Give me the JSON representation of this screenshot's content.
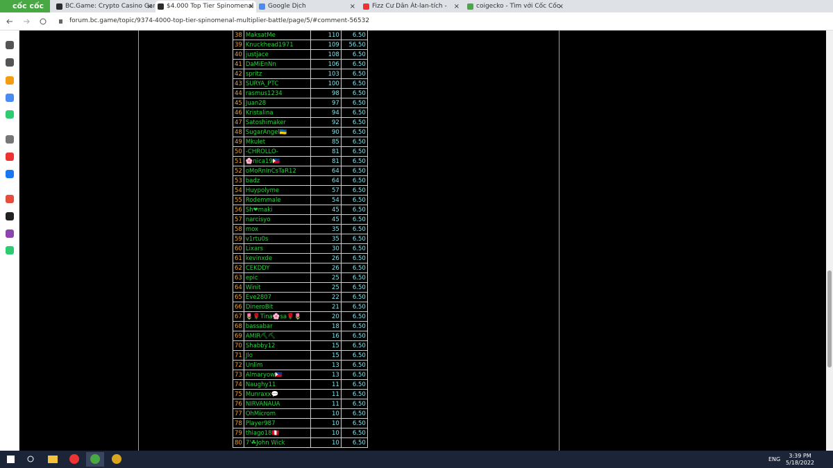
{
  "browser": {
    "logo": "cốc cốc",
    "tabs": [
      "BC.Game: Crypto Casino Gam",
      "$4.000 Top Tier Spinomenal",
      "Google Dịch",
      "Fizz Cư Dân Át-lan-tích -",
      "coigecko - Tìm với Cốc Cốc"
    ],
    "url": "forum.bc.game/topic/9374-4000-top-tier-spinomenal-multiplier-battle/page/5/#comment-56532"
  },
  "table": {
    "rows": [
      [
        "38",
        "MaksatMe",
        "110",
        "6.50"
      ],
      [
        "39",
        "Knuckhead1971",
        "109",
        "56.50"
      ],
      [
        "40",
        "justjace",
        "108",
        "6.50"
      ],
      [
        "41",
        "DaMiEnNn",
        "106",
        "6.50"
      ],
      [
        "42",
        "spritz",
        "103",
        "6.50"
      ],
      [
        "43",
        "SURYA_PTC",
        "100",
        "6.50"
      ],
      [
        "44",
        "rasmus1234",
        "98",
        "6.50"
      ],
      [
        "45",
        "Juan28",
        "97",
        "6.50"
      ],
      [
        "46",
        "Kristalina",
        "94",
        "6.50"
      ],
      [
        "47",
        "Satoshimaker",
        "92",
        "6.50"
      ],
      [
        "48",
        "SugarAngel🇺🇦",
        "90",
        "6.50"
      ],
      [
        "49",
        "Mkulet",
        "85",
        "6.50"
      ],
      [
        "50",
        "-CHROLLO-",
        "81",
        "6.50"
      ],
      [
        "51",
        "🌸nica19🇵🇭",
        "81",
        "6.50"
      ],
      [
        "52",
        "oMoRnInCsTaR12",
        "64",
        "6.50"
      ],
      [
        "53",
        "badz",
        "64",
        "6.50"
      ],
      [
        "54",
        "Huypolyme",
        "57",
        "6.50"
      ],
      [
        "55",
        "Rodemmale",
        "54",
        "6.50"
      ],
      [
        "56",
        "Sh❤maki",
        "45",
        "6.50"
      ],
      [
        "57",
        "narcisyo",
        "45",
        "6.50"
      ],
      [
        "58",
        "mox",
        "35",
        "6.50"
      ],
      [
        "59",
        "v1rtu0s",
        "35",
        "6.50"
      ],
      [
        "60",
        "Lixars",
        "30",
        "6.50"
      ],
      [
        "61",
        "kevinxde",
        "26",
        "6.50"
      ],
      [
        "62",
        "CEKDDY",
        "26",
        "6.50"
      ],
      [
        "63",
        "epic",
        "25",
        "6.50"
      ],
      [
        "64",
        "Winit",
        "25",
        "6.50"
      ],
      [
        "65",
        "Eve2807",
        "22",
        "6.50"
      ],
      [
        "66",
        "DineroBit",
        "21",
        "6.50"
      ],
      [
        "67",
        "🌷🌹Tina🌸sa🌹🌷",
        "20",
        "6.50"
      ],
      [
        "68",
        "bassabar",
        "18",
        "6.50"
      ],
      [
        "69",
        "AMIR⛏⛏",
        "16",
        "6.50"
      ],
      [
        "70",
        "Shabby12",
        "15",
        "6.50"
      ],
      [
        "71",
        "Jlo",
        "15",
        "6.50"
      ],
      [
        "72",
        "Unlim",
        "13",
        "6.50"
      ],
      [
        "73",
        "Almaryow🇵🇭",
        "13",
        "6.50"
      ],
      [
        "74",
        "Naughy11",
        "11",
        "6.50"
      ],
      [
        "75",
        "Munraxx💬",
        "11",
        "6.50"
      ],
      [
        "76",
        "NIRVANAUA",
        "11",
        "6.50"
      ],
      [
        "77",
        "OhMicrom",
        "10",
        "6.50"
      ],
      [
        "78",
        "Player987",
        "10",
        "6.50"
      ],
      [
        "79",
        "thiago18🇵🇪",
        "10",
        "6.50"
      ],
      [
        "80",
        "7'☘John Wick",
        "10",
        "6.50"
      ]
    ]
  },
  "taskbar": {
    "lang": "ENG",
    "time": "3:39 PM",
    "date": "5/18/2022"
  }
}
